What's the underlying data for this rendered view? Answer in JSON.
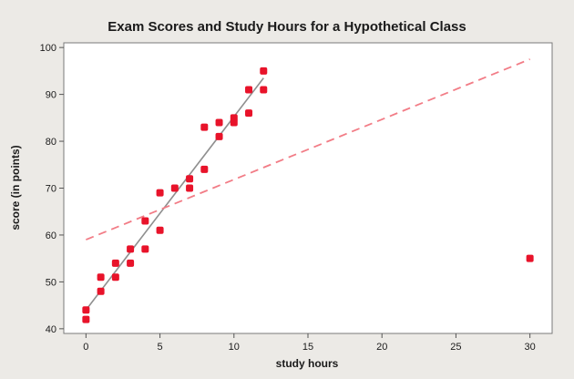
{
  "chart_data": {
    "type": "scatter",
    "title": "Exam Scores and Study Hours for a Hypothetical Class",
    "xlabel": "study hours",
    "ylabel": "score (in points)",
    "xlim": [
      -1.5,
      31.5
    ],
    "ylim": [
      39,
      101
    ],
    "xticks": [
      0,
      5,
      10,
      15,
      20,
      25,
      30
    ],
    "yticks": [
      40,
      50,
      60,
      70,
      80,
      90,
      100
    ],
    "grid": false,
    "colors": {
      "points": "#e8132a",
      "fit_line": "#8f8f8f",
      "dashed_line": "#f27c86",
      "plot_background": "#ffffff",
      "background": "#eceae6"
    },
    "series": [
      {
        "x": [
          0,
          0,
          1,
          1,
          2,
          2,
          3,
          3,
          4,
          4,
          5,
          5,
          6,
          7,
          7,
          8,
          8,
          9,
          9,
          10,
          10,
          11,
          11,
          12,
          12,
          30
        ],
        "y": [
          44,
          42,
          48,
          51,
          54,
          51,
          57,
          54,
          63,
          57,
          69,
          61,
          70,
          72,
          70,
          83,
          74,
          84,
          81,
          85,
          84,
          91,
          86,
          95,
          91,
          55
        ]
      }
    ],
    "lines": [
      {
        "style": "solid",
        "x": [
          0,
          12
        ],
        "y": [
          44,
          93.5
        ]
      },
      {
        "style": "dashed",
        "x": [
          0,
          30
        ],
        "y": [
          59,
          97.5
        ]
      }
    ]
  }
}
